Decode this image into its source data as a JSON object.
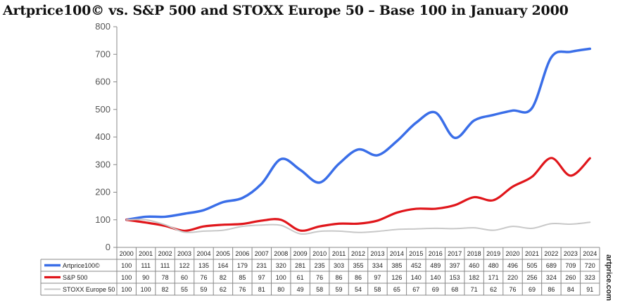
{
  "title": "Artprice100© vs. S&P 500 and STOXX Europe 50 – Base 100 in January 2000",
  "watermark": "artprice.com",
  "chart_data": {
    "type": "line",
    "title": "Artprice100© vs. S&P 500 and STOXX Europe 50 – Base 100 in January 2000",
    "x": [
      "2000",
      "2001",
      "2002",
      "2003",
      "2004",
      "2005",
      "2006",
      "2007",
      "2008",
      "2009",
      "2010",
      "2011",
      "2012",
      "2013",
      "2014",
      "2015",
      "2016",
      "2017",
      "2018",
      "2019",
      "2020",
      "2021",
      "2022",
      "2023",
      "2024"
    ],
    "yticks": [
      0,
      100,
      200,
      300,
      400,
      500,
      600,
      700,
      800
    ],
    "ylim": [
      0,
      800
    ],
    "grid": false,
    "legend": "data-table",
    "series": [
      {
        "name": "Artprice100©",
        "color": "#3a6ee8",
        "values": [
          100,
          111,
          111,
          122,
          135,
          164,
          179,
          231,
          320,
          281,
          235,
          303,
          355,
          334,
          385,
          452,
          489,
          397,
          460,
          480,
          496,
          505,
          689,
          709,
          720
        ]
      },
      {
        "name": "S&P 500",
        "color": "#e0161b",
        "values": [
          100,
          90,
          78,
          60,
          76,
          82,
          85,
          97,
          100,
          61,
          76,
          86,
          86,
          97,
          126,
          140,
          140,
          153,
          182,
          171,
          220,
          256,
          324,
          260,
          323
        ]
      },
      {
        "name": "STOXX Europe 50",
        "color": "#c8c8c8",
        "values": [
          100,
          100,
          82,
          55,
          59,
          62,
          76,
          81,
          80,
          49,
          58,
          59,
          54,
          58,
          65,
          67,
          69,
          68,
          71,
          62,
          76,
          69,
          86,
          84,
          91
        ]
      }
    ]
  }
}
